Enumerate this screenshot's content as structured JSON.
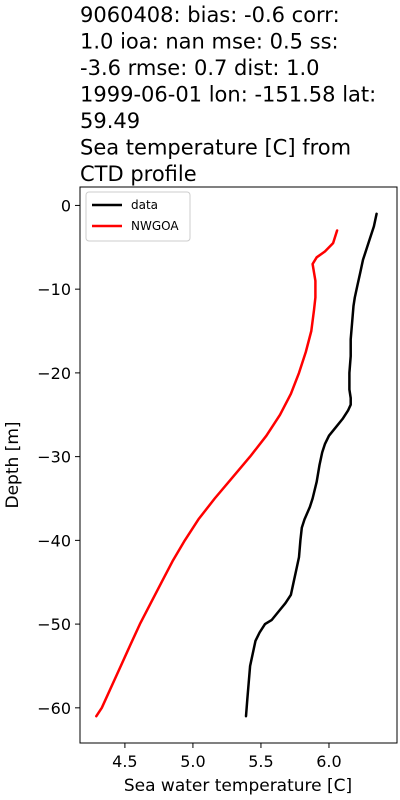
{
  "chart_data": {
    "type": "line",
    "title_lines": [
      "9060408: bias: -0.6  corr:",
      "1.0  ioa: nan  mse: 0.5  ss:",
      "-3.6  rmse: 0.7  dist: 1.0",
      "1999-06-01 lon: -151.58 lat:",
      "59.49",
      "Sea temperature [C] from",
      "CTD profile"
    ],
    "xlabel": "Sea water temperature [C]",
    "ylabel": "Depth [m]",
    "xlim": [
      4.17,
      6.5
    ],
    "ylim": [
      -64.2,
      2.2
    ],
    "xticks": [
      4.5,
      5.0,
      5.5,
      6.0
    ],
    "xtick_labels": [
      "4.5",
      "5.0",
      "5.5",
      "6.0"
    ],
    "yticks": [
      0,
      -10,
      -20,
      -30,
      -40,
      -50,
      -60
    ],
    "ytick_labels": [
      "0",
      "−10",
      "−20",
      "−30",
      "−40",
      "−50",
      "−60"
    ],
    "legend_placement": "upper-left",
    "grid": false,
    "series": [
      {
        "name": "data",
        "color": "#000000",
        "points": [
          [
            6.35,
            -1.0
          ],
          [
            6.33,
            -2.5
          ],
          [
            6.3,
            -4.0
          ],
          [
            6.27,
            -5.5
          ],
          [
            6.25,
            -6.5
          ],
          [
            6.23,
            -8.0
          ],
          [
            6.21,
            -9.5
          ],
          [
            6.19,
            -11.0
          ],
          [
            6.18,
            -12.0
          ],
          [
            6.17,
            -14.0
          ],
          [
            6.16,
            -16.0
          ],
          [
            6.16,
            -18.0
          ],
          [
            6.15,
            -20.0
          ],
          [
            6.15,
            -22.0
          ],
          [
            6.16,
            -23.0
          ],
          [
            6.16,
            -23.8
          ],
          [
            6.14,
            -24.5
          ],
          [
            6.1,
            -25.5
          ],
          [
            6.05,
            -26.5
          ],
          [
            6.0,
            -27.5
          ],
          [
            5.97,
            -28.5
          ],
          [
            5.95,
            -29.5
          ],
          [
            5.93,
            -31.0
          ],
          [
            5.91,
            -33.0
          ],
          [
            5.88,
            -35.0
          ],
          [
            5.86,
            -36.0
          ],
          [
            5.82,
            -37.5
          ],
          [
            5.8,
            -38.5
          ],
          [
            5.79,
            -40.0
          ],
          [
            5.78,
            -42.0
          ],
          [
            5.76,
            -43.5
          ],
          [
            5.74,
            -45.0
          ],
          [
            5.72,
            -46.5
          ],
          [
            5.68,
            -47.5
          ],
          [
            5.63,
            -48.5
          ],
          [
            5.58,
            -49.5
          ],
          [
            5.53,
            -50.0
          ],
          [
            5.49,
            -51.0
          ],
          [
            5.46,
            -52.0
          ],
          [
            5.44,
            -53.5
          ],
          [
            5.42,
            -55.0
          ],
          [
            5.41,
            -57.0
          ],
          [
            5.4,
            -59.0
          ],
          [
            5.39,
            -61.0
          ]
        ]
      },
      {
        "name": "NWGOA",
        "color": "#ff0000",
        "points": [
          [
            6.06,
            -3.0
          ],
          [
            6.03,
            -4.5
          ],
          [
            5.97,
            -5.5
          ],
          [
            5.91,
            -6.2
          ],
          [
            5.88,
            -7.0
          ],
          [
            5.89,
            -8.0
          ],
          [
            5.9,
            -9.0
          ],
          [
            5.9,
            -11.0
          ],
          [
            5.89,
            -12.5
          ],
          [
            5.87,
            -15.0
          ],
          [
            5.83,
            -17.5
          ],
          [
            5.78,
            -20.0
          ],
          [
            5.72,
            -22.5
          ],
          [
            5.64,
            -25.0
          ],
          [
            5.54,
            -27.5
          ],
          [
            5.42,
            -30.0
          ],
          [
            5.29,
            -32.5
          ],
          [
            5.16,
            -35.0
          ],
          [
            5.04,
            -37.5
          ],
          [
            4.94,
            -40.0
          ],
          [
            4.85,
            -42.5
          ],
          [
            4.77,
            -45.0
          ],
          [
            4.69,
            -47.5
          ],
          [
            4.61,
            -50.0
          ],
          [
            4.54,
            -52.5
          ],
          [
            4.47,
            -55.0
          ],
          [
            4.4,
            -57.5
          ],
          [
            4.33,
            -60.0
          ],
          [
            4.29,
            -61.0
          ]
        ]
      }
    ]
  }
}
